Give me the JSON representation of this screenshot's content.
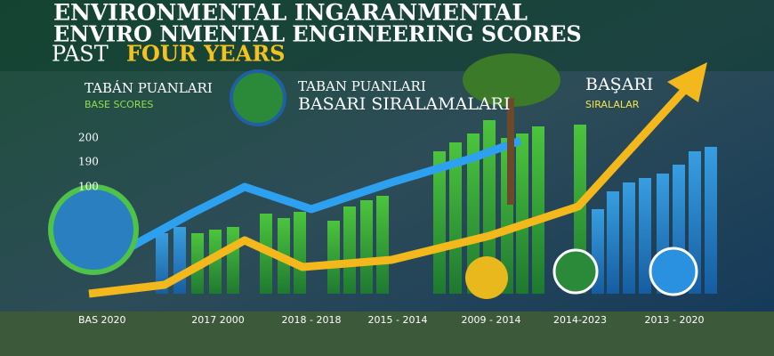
{
  "header": {
    "title_line1": "ENVIRONMENTAL INGARANMENTAL",
    "title_line2": "ENVIRO NMENTAL ENGINEERING SCORES",
    "subtitle_prefix": "PAST",
    "subtitle_highlight": "FOUR  YEARS"
  },
  "legend": {
    "left_title": "TABÁN PUANLARI",
    "left_sub": "BASE SCORES",
    "center_title": "TABAN PUANLARI",
    "center_sub": "BASARI SIRALAMALARI",
    "right_title": "BAŞARI",
    "right_sub": "SIRALALAR"
  },
  "axis_labels": [
    "200",
    "190",
    "100"
  ],
  "x_labels": [
    "BAS 2020",
    "2017  2000",
    "2018 - 2018",
    "2015 - 2014",
    "2009 - 2014",
    "2014-2023",
    "2013 - 2020"
  ]
}
